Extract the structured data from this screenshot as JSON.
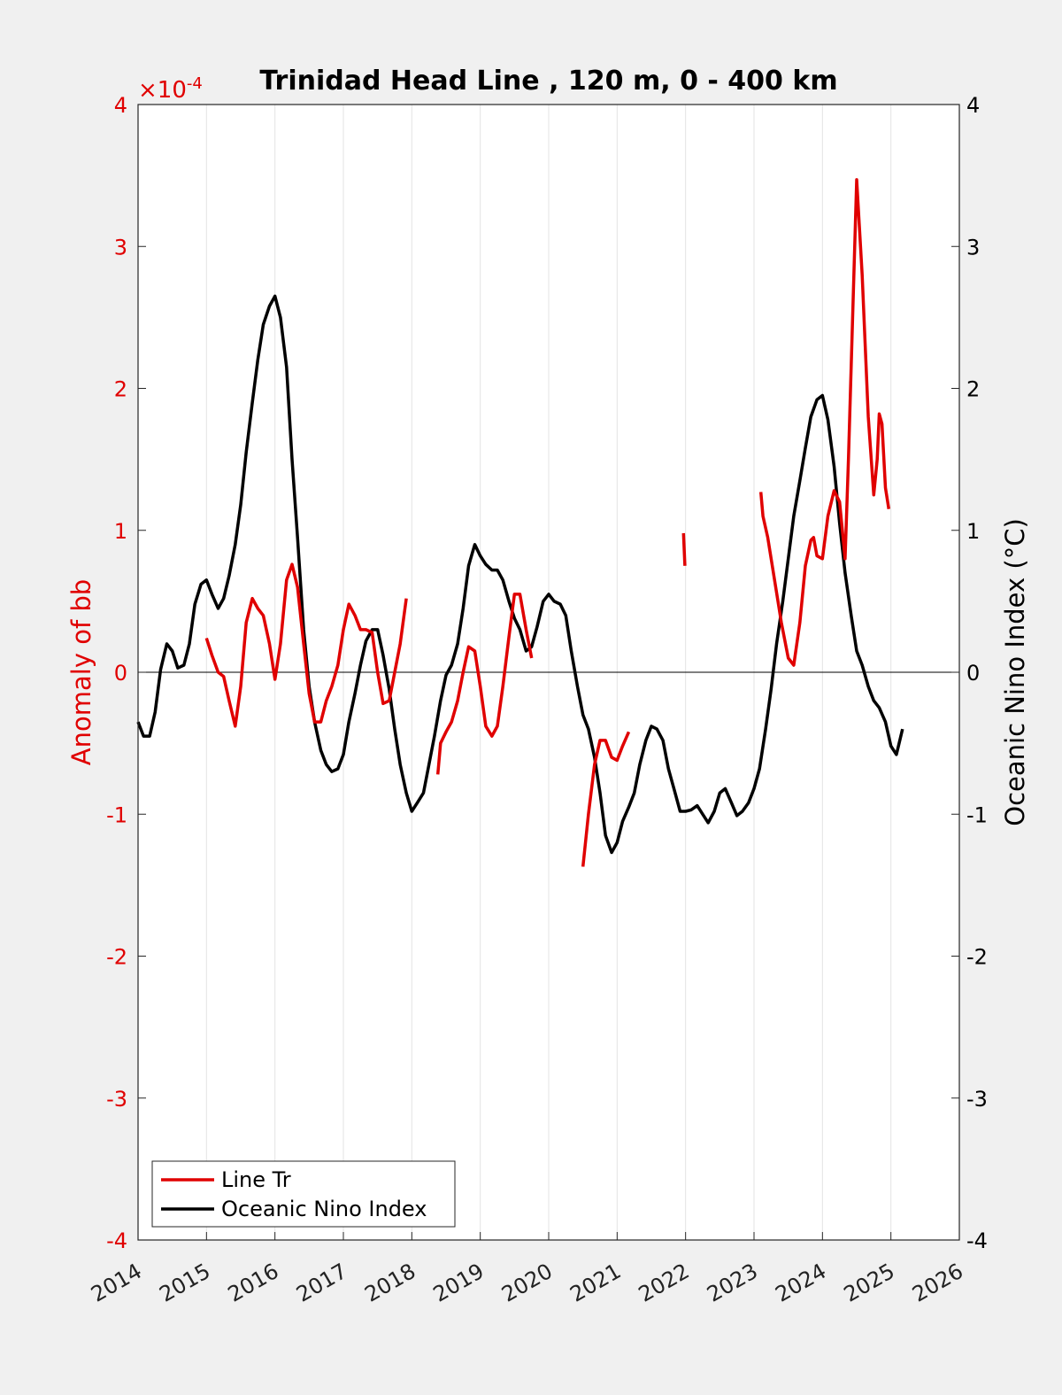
{
  "chart_data": {
    "type": "line",
    "title": "Trinidad Head Line , 120 m, 0 - 400 km",
    "ylabel_left": "Anomaly of bb",
    "ylabel_right": "Oceanic Nino Index (°C)",
    "left_axis_multiplier": "×10",
    "left_axis_exponent": "-4",
    "xlim": [
      2014,
      2026
    ],
    "ylim_left": [
      -4,
      4
    ],
    "ylim_right": [
      -4,
      4
    ],
    "x_ticks": [
      "2014",
      "2015",
      "2016",
      "2017",
      "2018",
      "2019",
      "2020",
      "2021",
      "2022",
      "2023",
      "2024",
      "2025",
      "2026"
    ],
    "y_ticks_left": [
      "4",
      "3",
      "2",
      "1",
      "0",
      "-1",
      "-2",
      "-3",
      "-4"
    ],
    "y_ticks_right": [
      "4",
      "3",
      "2",
      "1",
      "0",
      "-1",
      "-2",
      "-3",
      "-4"
    ],
    "grid": "vertical",
    "legend": {
      "placement": "bottom-left",
      "entries": [
        {
          "name": "Line Tr",
          "color": "#e00000"
        },
        {
          "name": "Oceanic Nino Index",
          "color": "#000000"
        }
      ]
    },
    "series": [
      {
        "name": "Line Tr",
        "axis": "left",
        "color": "#e00000",
        "segments": [
          [
            [
              2015.0,
              0.24
            ],
            [
              2015.08,
              0.12
            ],
            [
              2015.17,
              0.0
            ],
            [
              2015.25,
              -0.03
            ],
            [
              2015.33,
              -0.2
            ],
            [
              2015.42,
              -0.38
            ],
            [
              2015.5,
              -0.1
            ],
            [
              2015.58,
              0.35
            ],
            [
              2015.67,
              0.52
            ],
            [
              2015.75,
              0.45
            ],
            [
              2015.83,
              0.4
            ],
            [
              2015.92,
              0.2
            ],
            [
              2016.0,
              -0.05
            ],
            [
              2016.08,
              0.2
            ],
            [
              2016.17,
              0.65
            ],
            [
              2016.25,
              0.76
            ],
            [
              2016.33,
              0.6
            ],
            [
              2016.42,
              0.2
            ],
            [
              2016.5,
              -0.15
            ],
            [
              2016.58,
              -0.35
            ],
            [
              2016.67,
              -0.35
            ],
            [
              2016.75,
              -0.2
            ],
            [
              2016.83,
              -0.1
            ],
            [
              2016.92,
              0.05
            ],
            [
              2017.0,
              0.3
            ],
            [
              2017.08,
              0.48
            ],
            [
              2017.17,
              0.4
            ],
            [
              2017.25,
              0.3
            ],
            [
              2017.33,
              0.3
            ],
            [
              2017.42,
              0.28
            ],
            [
              2017.5,
              0.0
            ],
            [
              2017.58,
              -0.22
            ],
            [
              2017.67,
              -0.2
            ],
            [
              2017.75,
              0.0
            ],
            [
              2017.83,
              0.2
            ],
            [
              2017.92,
              0.52
            ]
          ],
          [
            [
              2018.38,
              -0.72
            ],
            [
              2018.42,
              -0.5
            ],
            [
              2018.5,
              -0.42
            ],
            [
              2018.58,
              -0.35
            ],
            [
              2018.67,
              -0.2
            ],
            [
              2018.75,
              0.0
            ],
            [
              2018.83,
              0.18
            ],
            [
              2018.92,
              0.15
            ],
            [
              2019.0,
              -0.1
            ],
            [
              2019.08,
              -0.38
            ],
            [
              2019.17,
              -0.45
            ],
            [
              2019.25,
              -0.38
            ],
            [
              2019.33,
              -0.1
            ],
            [
              2019.42,
              0.25
            ],
            [
              2019.5,
              0.55
            ],
            [
              2019.58,
              0.55
            ],
            [
              2019.67,
              0.3
            ],
            [
              2019.75,
              0.1
            ]
          ],
          [
            [
              2020.5,
              -1.37
            ],
            [
              2020.58,
              -1.0
            ],
            [
              2020.67,
              -0.65
            ],
            [
              2020.75,
              -0.48
            ],
            [
              2020.83,
              -0.48
            ],
            [
              2020.92,
              -0.6
            ],
            [
              2021.0,
              -0.62
            ],
            [
              2021.08,
              -0.52
            ],
            [
              2021.17,
              -0.42
            ]
          ],
          [
            [
              2021.97,
              0.98
            ],
            [
              2021.99,
              0.75
            ]
          ],
          [
            [
              2023.1,
              1.27
            ],
            [
              2023.13,
              1.1
            ],
            [
              2023.2,
              0.95
            ],
            [
              2023.3,
              0.65
            ],
            [
              2023.4,
              0.35
            ],
            [
              2023.5,
              0.1
            ],
            [
              2023.58,
              0.05
            ],
            [
              2023.67,
              0.35
            ],
            [
              2023.75,
              0.75
            ],
            [
              2023.83,
              0.93
            ],
            [
              2023.87,
              0.95
            ],
            [
              2023.92,
              0.82
            ],
            [
              2024.0,
              0.8
            ],
            [
              2024.08,
              1.1
            ],
            [
              2024.17,
              1.28
            ],
            [
              2024.25,
              1.2
            ],
            [
              2024.33,
              0.8
            ],
            [
              2024.38,
              1.5
            ],
            [
              2024.5,
              3.47
            ],
            [
              2024.58,
              2.8
            ],
            [
              2024.67,
              1.8
            ],
            [
              2024.75,
              1.25
            ],
            [
              2024.8,
              1.5
            ],
            [
              2024.83,
              1.82
            ],
            [
              2024.87,
              1.75
            ],
            [
              2024.92,
              1.3
            ],
            [
              2024.97,
              1.15
            ]
          ]
        ]
      },
      {
        "name": "Oceanic Nino Index",
        "axis": "right",
        "color": "#000000",
        "segments": [
          [
            [
              2014.0,
              -0.35
            ],
            [
              2014.08,
              -0.45
            ],
            [
              2014.17,
              -0.45
            ],
            [
              2014.25,
              -0.28
            ],
            [
              2014.33,
              0.02
            ],
            [
              2014.42,
              0.2
            ],
            [
              2014.5,
              0.15
            ],
            [
              2014.58,
              0.03
            ],
            [
              2014.67,
              0.05
            ],
            [
              2014.75,
              0.2
            ],
            [
              2014.83,
              0.48
            ],
            [
              2014.92,
              0.62
            ],
            [
              2015.0,
              0.65
            ],
            [
              2015.08,
              0.55
            ],
            [
              2015.17,
              0.45
            ],
            [
              2015.25,
              0.52
            ],
            [
              2015.33,
              0.68
            ],
            [
              2015.42,
              0.9
            ],
            [
              2015.5,
              1.18
            ],
            [
              2015.58,
              1.55
            ],
            [
              2015.67,
              1.9
            ],
            [
              2015.75,
              2.2
            ],
            [
              2015.83,
              2.45
            ],
            [
              2015.92,
              2.58
            ],
            [
              2016.0,
              2.65
            ],
            [
              2016.08,
              2.5
            ],
            [
              2016.17,
              2.15
            ],
            [
              2016.25,
              1.5
            ],
            [
              2016.33,
              0.95
            ],
            [
              2016.42,
              0.3
            ],
            [
              2016.5,
              -0.1
            ],
            [
              2016.58,
              -0.35
            ],
            [
              2016.67,
              -0.55
            ],
            [
              2016.75,
              -0.65
            ],
            [
              2016.83,
              -0.7
            ],
            [
              2016.92,
              -0.68
            ],
            [
              2017.0,
              -0.58
            ],
            [
              2017.08,
              -0.35
            ],
            [
              2017.17,
              -0.15
            ],
            [
              2017.25,
              0.05
            ],
            [
              2017.33,
              0.22
            ],
            [
              2017.42,
              0.3
            ],
            [
              2017.5,
              0.3
            ],
            [
              2017.58,
              0.12
            ],
            [
              2017.67,
              -0.12
            ],
            [
              2017.75,
              -0.4
            ],
            [
              2017.83,
              -0.65
            ],
            [
              2017.92,
              -0.85
            ],
            [
              2018.0,
              -0.98
            ],
            [
              2018.08,
              -0.92
            ],
            [
              2018.17,
              -0.85
            ],
            [
              2018.25,
              -0.65
            ],
            [
              2018.33,
              -0.45
            ],
            [
              2018.42,
              -0.2
            ],
            [
              2018.5,
              -0.02
            ],
            [
              2018.58,
              0.05
            ],
            [
              2018.67,
              0.2
            ],
            [
              2018.75,
              0.45
            ],
            [
              2018.83,
              0.75
            ],
            [
              2018.92,
              0.9
            ],
            [
              2019.0,
              0.82
            ],
            [
              2019.08,
              0.76
            ],
            [
              2019.17,
              0.72
            ],
            [
              2019.25,
              0.72
            ],
            [
              2019.33,
              0.65
            ],
            [
              2019.42,
              0.5
            ],
            [
              2019.5,
              0.38
            ],
            [
              2019.58,
              0.3
            ],
            [
              2019.67,
              0.15
            ],
            [
              2019.75,
              0.18
            ],
            [
              2019.83,
              0.32
            ],
            [
              2019.92,
              0.5
            ],
            [
              2020.0,
              0.55
            ],
            [
              2020.08,
              0.5
            ],
            [
              2020.17,
              0.48
            ],
            [
              2020.25,
              0.4
            ],
            [
              2020.33,
              0.15
            ],
            [
              2020.42,
              -0.1
            ],
            [
              2020.5,
              -0.3
            ],
            [
              2020.58,
              -0.4
            ],
            [
              2020.67,
              -0.6
            ],
            [
              2020.75,
              -0.85
            ],
            [
              2020.83,
              -1.15
            ],
            [
              2020.92,
              -1.27
            ],
            [
              2021.0,
              -1.2
            ],
            [
              2021.08,
              -1.05
            ],
            [
              2021.17,
              -0.95
            ],
            [
              2021.25,
              -0.85
            ],
            [
              2021.33,
              -0.65
            ],
            [
              2021.42,
              -0.48
            ],
            [
              2021.5,
              -0.38
            ],
            [
              2021.58,
              -0.4
            ],
            [
              2021.67,
              -0.48
            ],
            [
              2021.75,
              -0.68
            ],
            [
              2021.83,
              -0.82
            ],
            [
              2021.92,
              -0.98
            ],
            [
              2022.0,
              -0.98
            ],
            [
              2022.08,
              -0.97
            ],
            [
              2022.17,
              -0.94
            ],
            [
              2022.25,
              -1.0
            ],
            [
              2022.33,
              -1.06
            ],
            [
              2022.42,
              -0.98
            ],
            [
              2022.5,
              -0.85
            ],
            [
              2022.58,
              -0.82
            ],
            [
              2022.67,
              -0.92
            ],
            [
              2022.75,
              -1.01
            ],
            [
              2022.83,
              -0.98
            ],
            [
              2022.92,
              -0.92
            ],
            [
              2023.0,
              -0.82
            ],
            [
              2023.08,
              -0.68
            ],
            [
              2023.17,
              -0.4
            ],
            [
              2023.25,
              -0.12
            ],
            [
              2023.33,
              0.2
            ],
            [
              2023.42,
              0.5
            ],
            [
              2023.5,
              0.8
            ],
            [
              2023.58,
              1.1
            ],
            [
              2023.67,
              1.35
            ],
            [
              2023.75,
              1.58
            ],
            [
              2023.83,
              1.8
            ],
            [
              2023.92,
              1.92
            ],
            [
              2024.0,
              1.95
            ],
            [
              2024.08,
              1.78
            ],
            [
              2024.17,
              1.45
            ],
            [
              2024.25,
              1.05
            ],
            [
              2024.33,
              0.7
            ],
            [
              2024.42,
              0.4
            ],
            [
              2024.5,
              0.15
            ],
            [
              2024.58,
              0.05
            ],
            [
              2024.67,
              -0.1
            ],
            [
              2024.75,
              -0.2
            ],
            [
              2024.83,
              -0.25
            ],
            [
              2024.92,
              -0.35
            ],
            [
              2025.0,
              -0.52
            ],
            [
              2025.08,
              -0.58
            ],
            [
              2025.17,
              -0.4
            ]
          ]
        ]
      }
    ]
  }
}
